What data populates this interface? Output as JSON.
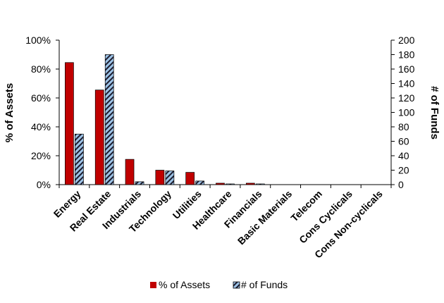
{
  "chart_data": {
    "type": "bar",
    "categories": [
      "Energy",
      "Real Estate",
      "Industrials",
      "Technology",
      "Utilities",
      "Healthcare",
      "Financials",
      "Basic Materials",
      "Telecom",
      "Cons Cyclicals",
      "Cons Non-cyclicals"
    ],
    "series": [
      {
        "name": "% of Assets",
        "axis": "left",
        "values": [
          84.5,
          65.5,
          17.5,
          10,
          8.5,
          1,
          1,
          0,
          0,
          0,
          0
        ],
        "color": "#c00000"
      },
      {
        "name": "# of Funds",
        "axis": "right",
        "values": [
          70,
          180,
          4,
          19,
          5,
          1,
          1,
          0,
          0,
          0,
          0
        ],
        "color": "#9dc3e6",
        "pattern": "diagonal-hatch"
      }
    ],
    "y_left": {
      "label": "% of Assets",
      "ylim": [
        0,
        100
      ],
      "ticks": [
        "0%",
        "20%",
        "40%",
        "60%",
        "80%",
        "100%"
      ]
    },
    "y_right": {
      "label": "# of Funds",
      "ylim": [
        0,
        200
      ],
      "ticks": [
        "0",
        "20",
        "40",
        "60",
        "80",
        "100",
        "120",
        "140",
        "160",
        "180",
        "200"
      ]
    },
    "legend": {
      "placement": "bottom",
      "items": [
        "% of Assets",
        "# of Funds"
      ]
    },
    "grid": false
  }
}
